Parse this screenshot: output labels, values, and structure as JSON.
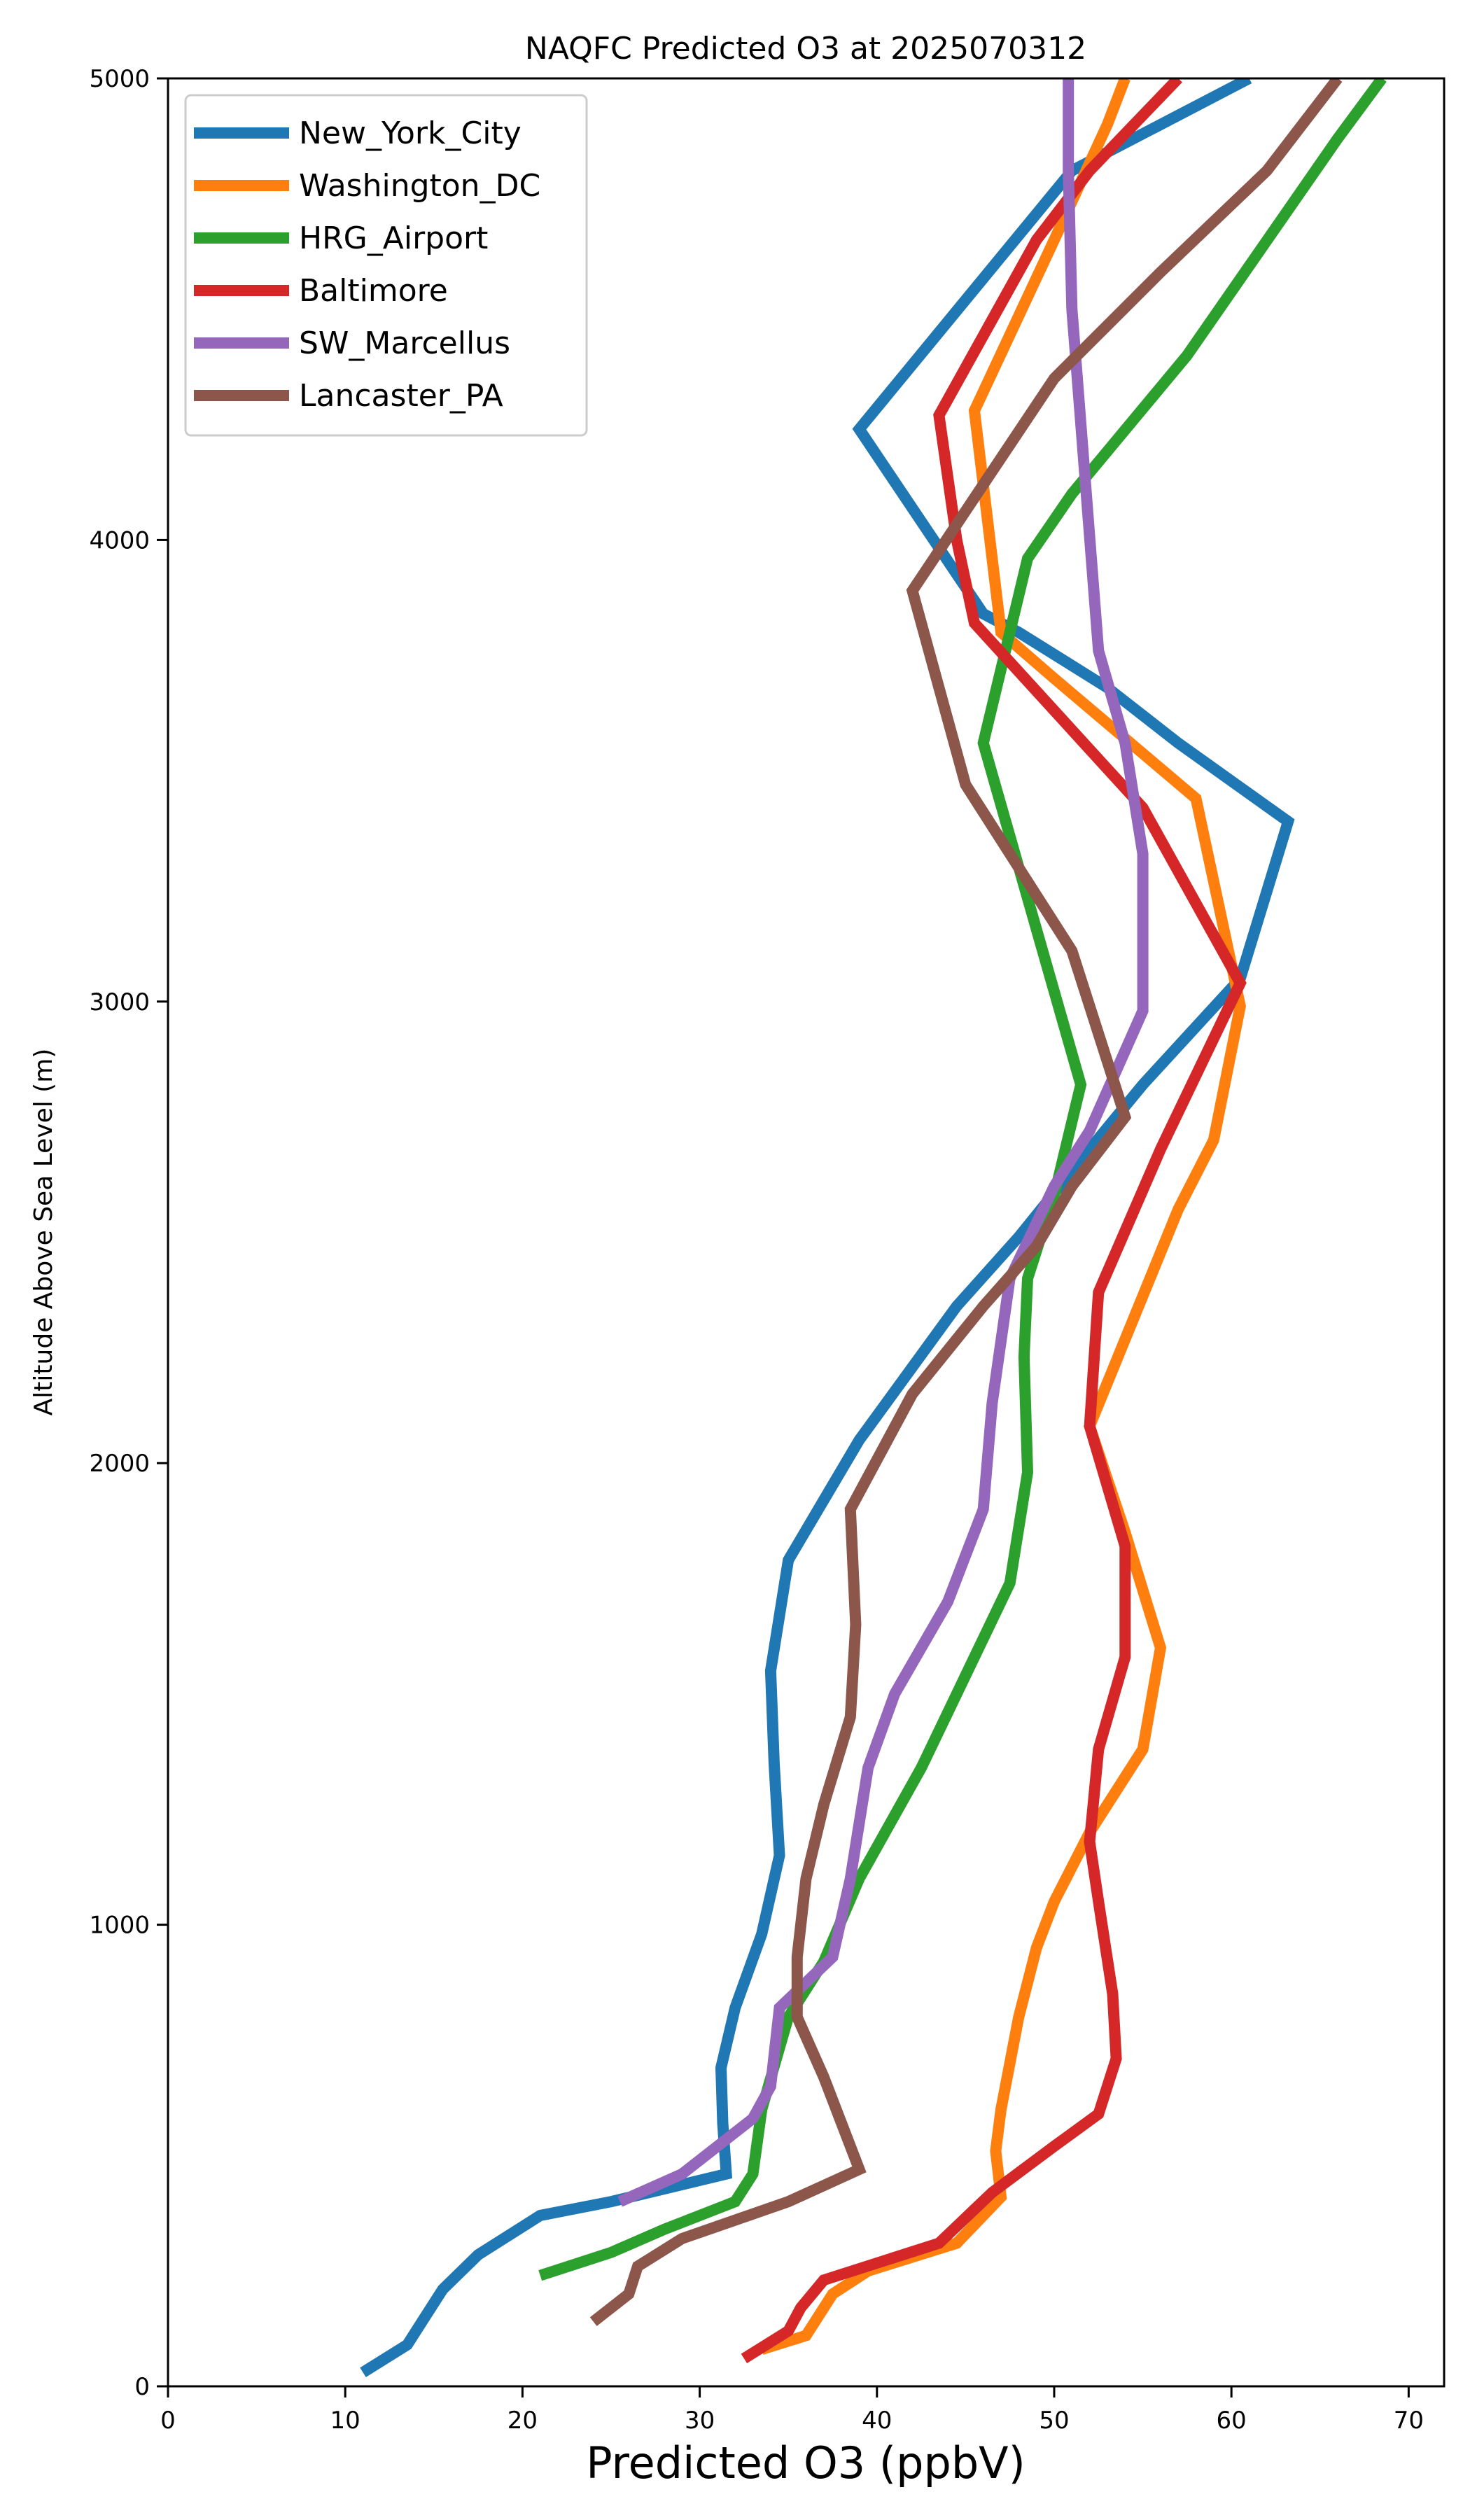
{
  "chart_data": {
    "type": "line",
    "title": "NAQFC Predicted O3 at 2025070312",
    "xlabel": "Predicted O3 (ppbV)",
    "ylabel": "Altitude Above Sea Level (m)",
    "xlim": [
      0,
      72
    ],
    "ylim": [
      0,
      5000
    ],
    "xticks": [
      0,
      10,
      20,
      30,
      40,
      50,
      60,
      70
    ],
    "yticks": [
      0,
      1000,
      2000,
      3000,
      4000,
      5000
    ],
    "grid": false,
    "legend_position": "top-left",
    "series": [
      {
        "name": "New_York_City",
        "color": "#1f77b4",
        "points": [
          [
            11.0,
            30
          ],
          [
            13.5,
            90
          ],
          [
            14.5,
            150
          ],
          [
            15.5,
            210
          ],
          [
            17.5,
            285
          ],
          [
            21,
            370
          ],
          [
            25,
            400
          ],
          [
            31.5,
            460
          ],
          [
            31.3,
            570
          ],
          [
            31.2,
            690
          ],
          [
            32,
            820
          ],
          [
            33.5,
            980
          ],
          [
            34.5,
            1150
          ],
          [
            34.2,
            1350
          ],
          [
            34,
            1550
          ],
          [
            35,
            1790
          ],
          [
            37,
            1920
          ],
          [
            39,
            2050
          ],
          [
            44.5,
            2340
          ],
          [
            48,
            2490
          ],
          [
            52,
            2680
          ],
          [
            55,
            2820
          ],
          [
            60.5,
            3050
          ],
          [
            63.2,
            3390
          ],
          [
            57,
            3560
          ],
          [
            53,
            3680
          ],
          [
            48,
            3800
          ],
          [
            46,
            3840
          ],
          [
            39,
            4240
          ],
          [
            51,
            4800
          ],
          [
            61,
            5000
          ]
        ]
      },
      {
        "name": "Washington_DC",
        "color": "#ff7f0e",
        "points": [
          [
            33.5,
            80
          ],
          [
            36,
            110
          ],
          [
            36.5,
            140
          ],
          [
            37.5,
            200
          ],
          [
            39.5,
            250
          ],
          [
            44.5,
            310
          ],
          [
            47,
            410
          ],
          [
            46.7,
            510
          ],
          [
            47,
            600
          ],
          [
            48,
            800
          ],
          [
            49,
            950
          ],
          [
            50,
            1050
          ],
          [
            52,
            1200
          ],
          [
            55,
            1380
          ],
          [
            56,
            1600
          ],
          [
            54,
            1850
          ],
          [
            52,
            2080
          ],
          [
            57,
            2550
          ],
          [
            59,
            2700
          ],
          [
            60.5,
            2990
          ],
          [
            58,
            3440
          ],
          [
            50,
            3700
          ],
          [
            47,
            3800
          ],
          [
            45.5,
            4280
          ],
          [
            50,
            4650
          ],
          [
            53,
            4900
          ],
          [
            54,
            5000
          ]
        ]
      },
      {
        "name": "HRG_Airport",
        "color": "#2ca02c",
        "points": [
          [
            21,
            240
          ],
          [
            25,
            290
          ],
          [
            28,
            340
          ],
          [
            32,
            400
          ],
          [
            33,
            460
          ],
          [
            33.5,
            600
          ],
          [
            35,
            800
          ],
          [
            37,
            920
          ],
          [
            39,
            1100
          ],
          [
            42.5,
            1340
          ],
          [
            45,
            1540
          ],
          [
            47.5,
            1740
          ],
          [
            48.5,
            1980
          ],
          [
            48.3,
            2230
          ],
          [
            48.5,
            2400
          ],
          [
            50,
            2580
          ],
          [
            51.5,
            2820
          ],
          [
            46,
            3560
          ],
          [
            48.5,
            3960
          ],
          [
            51,
            4100
          ],
          [
            57.5,
            4400
          ],
          [
            66,
            4870
          ],
          [
            68.5,
            5000
          ]
        ]
      },
      {
        "name": "Baltimore",
        "color": "#d62728",
        "points": [
          [
            32.5,
            60
          ],
          [
            35,
            120
          ],
          [
            35.7,
            170
          ],
          [
            37,
            230
          ],
          [
            43.5,
            310
          ],
          [
            46.5,
            420
          ],
          [
            50,
            520
          ],
          [
            52.5,
            590
          ],
          [
            53.5,
            710
          ],
          [
            53.3,
            850
          ],
          [
            52.5,
            1050
          ],
          [
            52,
            1180
          ],
          [
            52.5,
            1380
          ],
          [
            54,
            1580
          ],
          [
            54,
            1820
          ],
          [
            52,
            2080
          ],
          [
            52.5,
            2370
          ],
          [
            56,
            2680
          ],
          [
            60.5,
            3040
          ],
          [
            55,
            3420
          ],
          [
            45.5,
            3820
          ],
          [
            44.5,
            4000
          ],
          [
            43.5,
            4270
          ],
          [
            49,
            4650
          ],
          [
            52,
            4800
          ],
          [
            57,
            5000
          ]
        ]
      },
      {
        "name": "SW_Marcellus",
        "color": "#9467bd",
        "points": [
          [
            25.5,
            400
          ],
          [
            29,
            460
          ],
          [
            33,
            580
          ],
          [
            34,
            650
          ],
          [
            34.5,
            820
          ],
          [
            37.5,
            930
          ],
          [
            38.5,
            1100
          ],
          [
            39.5,
            1340
          ],
          [
            41,
            1500
          ],
          [
            44,
            1700
          ],
          [
            46,
            1900
          ],
          [
            46.5,
            2130
          ],
          [
            47.5,
            2400
          ],
          [
            50,
            2600
          ],
          [
            52,
            2720
          ],
          [
            55,
            2980
          ],
          [
            55,
            3320
          ],
          [
            54,
            3560
          ],
          [
            52.5,
            3760
          ],
          [
            51,
            4500
          ],
          [
            50.8,
            4800
          ],
          [
            50.8,
            5000
          ]
        ]
      },
      {
        "name": "Lancaster_PA",
        "color": "#8c564b",
        "points": [
          [
            24,
            140
          ],
          [
            26,
            200
          ],
          [
            26.5,
            260
          ],
          [
            29,
            320
          ],
          [
            35,
            400
          ],
          [
            39,
            470
          ],
          [
            37,
            670
          ],
          [
            35.5,
            800
          ],
          [
            35.5,
            930
          ],
          [
            36,
            1100
          ],
          [
            37,
            1260
          ],
          [
            38.5,
            1450
          ],
          [
            38.8,
            1650
          ],
          [
            38.5,
            1900
          ],
          [
            42,
            2150
          ],
          [
            46,
            2340
          ],
          [
            49,
            2470
          ],
          [
            51,
            2600
          ],
          [
            54,
            2750
          ],
          [
            51,
            3110
          ],
          [
            45,
            3470
          ],
          [
            42,
            3890
          ],
          [
            50,
            4350
          ],
          [
            56,
            4580
          ],
          [
            62,
            4800
          ],
          [
            66,
            5000
          ]
        ]
      }
    ]
  }
}
